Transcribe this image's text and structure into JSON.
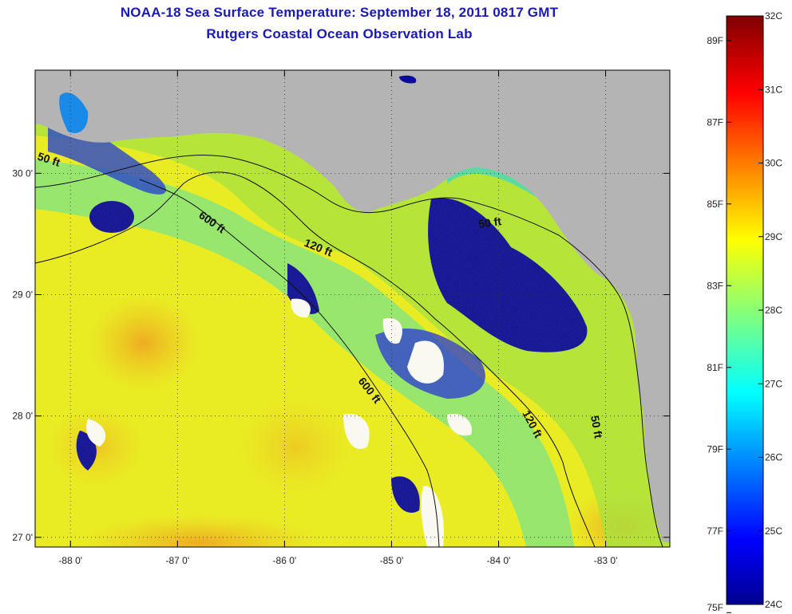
{
  "header": {
    "title": "NOAA-18 Sea Surface Temperature:  September 18, 2011 0817 GMT",
    "subtitle": "Rutgers Coastal Ocean Observation Lab"
  },
  "map": {
    "lon_range": [
      -88.33,
      -82.4
    ],
    "lat_range": [
      26.92,
      30.85
    ],
    "x_ticks": [
      {
        "value": -88,
        "label": "-88 0'"
      },
      {
        "value": -87,
        "label": "-87 0'"
      },
      {
        "value": -86,
        "label": "-86 0'"
      },
      {
        "value": -85,
        "label": "-85 0'"
      },
      {
        "value": -84,
        "label": "-84 0'"
      },
      {
        "value": -83,
        "label": "-83 0'"
      }
    ],
    "y_ticks": [
      {
        "value": 30,
        "label": "30 0'"
      },
      {
        "value": 29,
        "label": "29 0'"
      },
      {
        "value": 28,
        "label": "28 0'"
      },
      {
        "value": 27,
        "label": "27 0'"
      }
    ],
    "grid": "dotted",
    "land_color": "#b4b4b4",
    "isobath_labels": [
      {
        "text": "50 ft",
        "id": "iso-50-west"
      },
      {
        "text": "600 ft",
        "id": "iso-600-north"
      },
      {
        "text": "120 ft",
        "id": "iso-120-north"
      },
      {
        "text": "50 ft",
        "id": "iso-50-bigbend"
      },
      {
        "text": "600 ft",
        "id": "iso-600-south"
      },
      {
        "text": "120 ft",
        "id": "iso-120-south"
      },
      {
        "text": "50 ft",
        "id": "iso-50-south"
      }
    ]
  },
  "colorbar": {
    "celsius_ticks": [
      {
        "value": 32,
        "label": "32C"
      },
      {
        "value": 31,
        "label": "31C"
      },
      {
        "value": 30,
        "label": "30C"
      },
      {
        "value": 29,
        "label": "29C"
      },
      {
        "value": 28,
        "label": "28C"
      },
      {
        "value": 27,
        "label": "27C"
      },
      {
        "value": 26,
        "label": "26C"
      },
      {
        "value": 25,
        "label": "25C"
      },
      {
        "value": 24,
        "label": "24C"
      }
    ],
    "fahrenheit_ticks": [
      {
        "value": 89,
        "label": "89F"
      },
      {
        "value": 87,
        "label": "87F"
      },
      {
        "value": 85,
        "label": "85F"
      },
      {
        "value": 83,
        "label": "83F"
      },
      {
        "value": 81,
        "label": "81F"
      },
      {
        "value": 79,
        "label": "79F"
      },
      {
        "value": 77,
        "label": "77F"
      },
      {
        "value": 75,
        "label": "75F"
      }
    ],
    "range_c": [
      24,
      32
    ],
    "colormap": "jet"
  }
}
